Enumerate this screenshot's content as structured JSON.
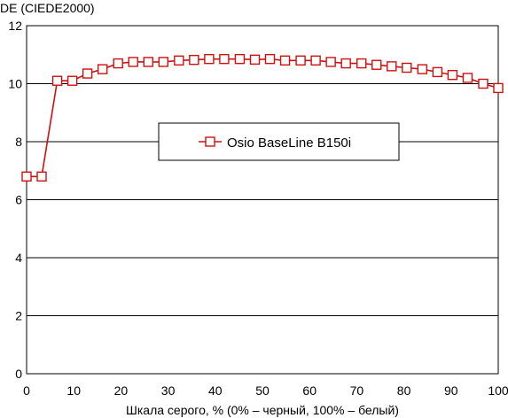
{
  "chart_data": {
    "type": "line",
    "ylabel": "DE (CIEDE2000)",
    "xlabel": "Шкала серого, % (0% – черный, 100% – белый)",
    "xlim": [
      0,
      100
    ],
    "ylim": [
      0,
      12
    ],
    "x_ticks": [
      "0",
      "10",
      "20",
      "30",
      "40",
      "50",
      "60",
      "70",
      "80",
      "90",
      "100"
    ],
    "y_ticks": [
      "0",
      "2",
      "4",
      "6",
      "8",
      "10",
      "12"
    ],
    "grid": "horizontal",
    "legend_position": "center",
    "series": [
      {
        "name": "Osio BaseLine B150i",
        "color": "#d01010",
        "marker": "open-square",
        "x": [
          0,
          3.2,
          6.5,
          9.7,
          12.9,
          16.1,
          19.4,
          22.6,
          25.8,
          29.0,
          32.3,
          35.5,
          38.7,
          41.9,
          45.2,
          48.4,
          51.6,
          54.8,
          58.1,
          61.3,
          64.5,
          67.7,
          71.0,
          74.2,
          77.4,
          80.6,
          83.9,
          87.1,
          90.3,
          93.5,
          96.8,
          100
        ],
        "values": [
          6.8,
          6.8,
          10.1,
          10.1,
          10.35,
          10.5,
          10.7,
          10.75,
          10.75,
          10.75,
          10.8,
          10.82,
          10.85,
          10.85,
          10.85,
          10.83,
          10.85,
          10.8,
          10.8,
          10.8,
          10.75,
          10.7,
          10.7,
          10.65,
          10.6,
          10.55,
          10.5,
          10.4,
          10.3,
          10.2,
          10.0,
          9.85
        ]
      }
    ]
  }
}
